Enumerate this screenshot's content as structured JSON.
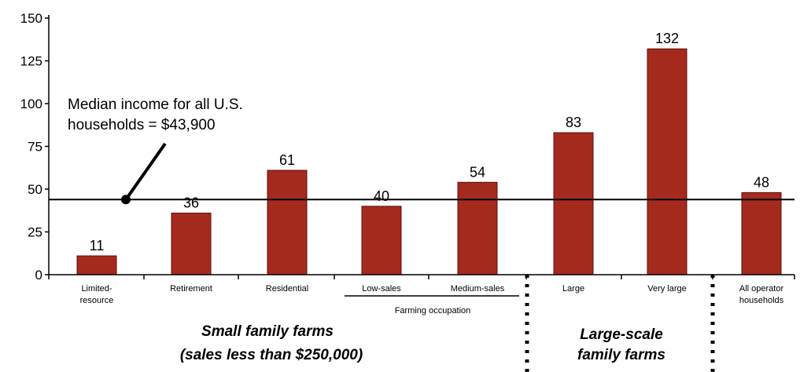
{
  "chart_data": {
    "type": "bar",
    "categories": [
      "Limited-resource",
      "Retirement",
      "Residential",
      "Low-sales",
      "Medium-sales",
      "Large",
      "Very large",
      "All operator households"
    ],
    "category_lines": [
      [
        "Limited-",
        "resource"
      ],
      [
        "Retirement"
      ],
      [
        "Residential"
      ],
      [
        "Low-sales"
      ],
      [
        "Medium-sales"
      ],
      [
        "Large"
      ],
      [
        "Very large"
      ],
      [
        "All operator",
        "households"
      ]
    ],
    "values": [
      11,
      36,
      61,
      40,
      54,
      83,
      132,
      48
    ],
    "value_labels": [
      "11",
      "36",
      "61",
      "40",
      "54",
      "83",
      "132",
      "48"
    ],
    "ylim": [
      0,
      150
    ],
    "yticks": [
      0,
      25,
      50,
      75,
      100,
      125,
      150
    ],
    "ytick_labels": [
      "0",
      "25",
      "50",
      "75",
      "100",
      "125",
      "150"
    ],
    "bar_color": "#a52a1e",
    "reference_line": {
      "value": 43.9,
      "label_line1": "Median income for all U.S.",
      "label_line2": "households = $43,900"
    },
    "groups": {
      "farming_occupation": "Farming occupation",
      "small_line1": "Small family farms",
      "small_line2": "(sales less than $250,000)",
      "large_line1": "Large-scale",
      "large_line2": "family farms"
    },
    "grid": false,
    "legend": "none"
  }
}
